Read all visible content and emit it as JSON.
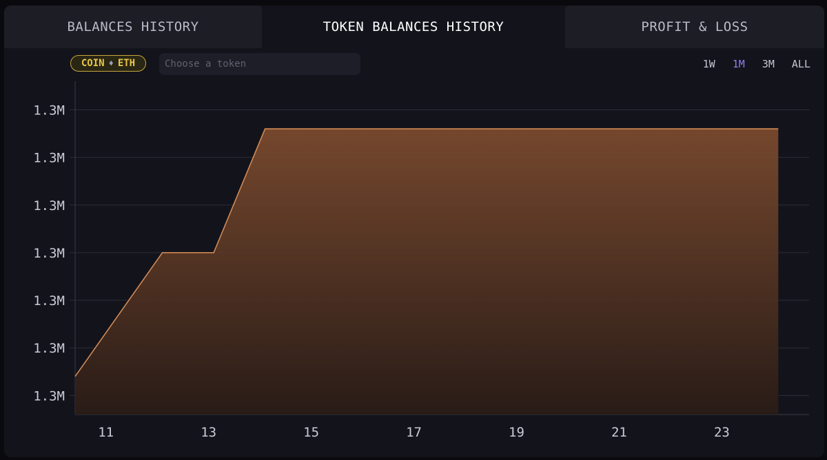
{
  "tabs": [
    {
      "label": "BALANCES HISTORY",
      "active": false
    },
    {
      "label": "TOKEN BALANCES HISTORY",
      "active": true
    },
    {
      "label": "PROFIT & LOSS",
      "active": false
    }
  ],
  "chip": {
    "prefix": "COIN",
    "icon": "eth-diamond-icon",
    "token": "ETH"
  },
  "token_search": {
    "placeholder": "Choose a token",
    "value": ""
  },
  "ranges": [
    {
      "label": "1W",
      "active": false
    },
    {
      "label": "1M",
      "active": true
    },
    {
      "label": "3M",
      "active": false
    },
    {
      "label": "ALL",
      "active": false
    }
  ],
  "colors": {
    "line": "#d08a56",
    "fill_top": "#7a4a2e",
    "fill_bottom": "#2a1c17",
    "active_range": "#8f7ff0",
    "chip": "#e8c64a"
  },
  "chart_data": {
    "type": "area",
    "x": [
      10.4,
      12.1,
      13.1,
      14.1,
      15.1,
      24.1
    ],
    "y": [
      1.2992,
      1.3005,
      1.3005,
      1.3018,
      1.3018,
      1.3018
    ],
    "xticks": [
      "11",
      "13",
      "15",
      "17",
      "19",
      "21",
      "23"
    ],
    "xtick_values": [
      11,
      13,
      15,
      17,
      19,
      21,
      23
    ],
    "yticks": [
      "1.3M",
      "1.3M",
      "1.3M",
      "1.3M",
      "1.3M",
      "1.3M",
      "1.3M"
    ],
    "ytick_values": [
      1.299,
      1.2995,
      1.3,
      1.3005,
      1.301,
      1.3015,
      1.302
    ],
    "xlim": [
      10.4,
      24.7
    ],
    "ylim": [
      1.2988,
      1.3023
    ],
    "grid": true
  }
}
